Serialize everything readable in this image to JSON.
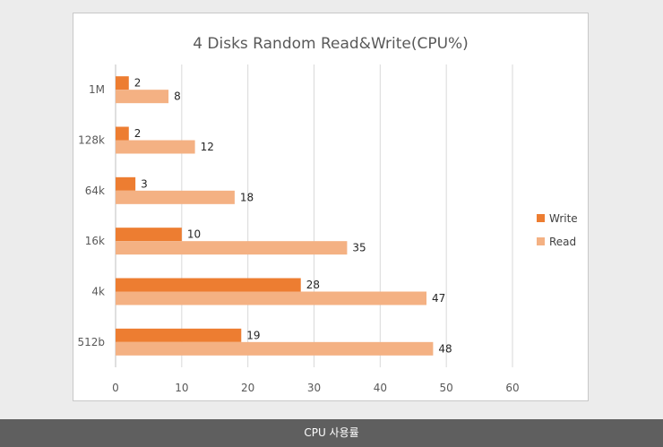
{
  "chart_data": {
    "type": "bar",
    "orientation": "horizontal",
    "title": "4 Disks Random Read&Write(CPU%)",
    "categories": [
      "1M",
      "128k",
      "64k",
      "16k",
      "4k",
      "512b"
    ],
    "series": [
      {
        "name": "Write",
        "color": "#ed7d31",
        "values": [
          2,
          2,
          3,
          10,
          28,
          19
        ]
      },
      {
        "name": "Read",
        "color": "#f4b183",
        "values": [
          8,
          12,
          18,
          35,
          47,
          48
        ]
      }
    ],
    "xlim": [
      0,
      60
    ],
    "xticks": [
      0,
      10,
      20,
      30,
      40,
      50,
      60
    ],
    "grid": true,
    "legend_position": "right"
  },
  "caption": "CPU 사용률"
}
